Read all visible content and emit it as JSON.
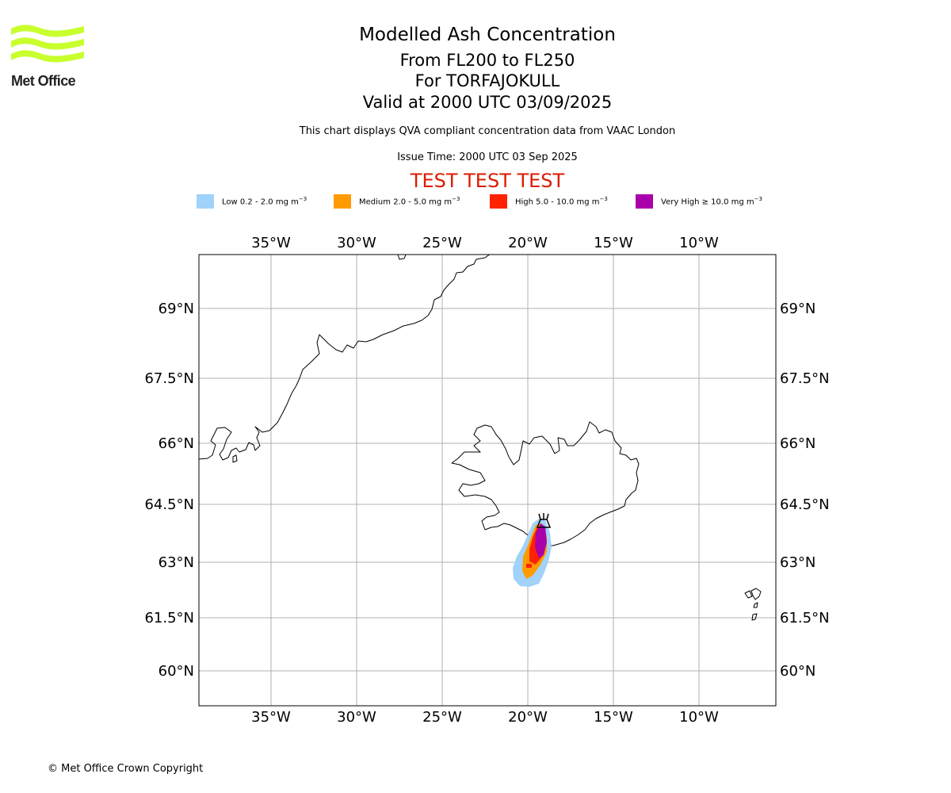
{
  "logo": {
    "text": "Met Office",
    "color": "#c8ff2d"
  },
  "header": {
    "title": "Modelled Ash Concentration",
    "levels": "From FL200 to FL250",
    "volcano": "For TORFAJOKULL",
    "valid": "Valid at 2000 UTC 03/09/2025",
    "subtitle": "This chart displays QVA compliant concentration data from VAAC London",
    "issue_time": "Issue Time: 2000 UTC 03 Sep 2025",
    "test_banner": "TEST TEST TEST"
  },
  "legend": [
    {
      "name": "Low",
      "range": "0.2 - 2.0 mg m",
      "sup": "−3",
      "color": "#a0d2fa"
    },
    {
      "name": "Medium",
      "range": "2.0 - 5.0 mg m",
      "sup": "−3",
      "color": "#ff9b00"
    },
    {
      "name": "High",
      "range": "5.0 - 10.0 mg m",
      "sup": "−3",
      "color": "#ff2200"
    },
    {
      "name": "Very High",
      "range": "≥  10.0 mg m",
      "sup": "−3",
      "color": "#aa00aa"
    }
  ],
  "map": {
    "lon_labels": [
      "35°W",
      "30°W",
      "25°W",
      "20°W",
      "15°W",
      "10°W"
    ],
    "lat_labels": [
      "69°N",
      "67.5°N",
      "66°N",
      "64.5°N",
      "63°N",
      "61.5°N",
      "60°N"
    ],
    "volcano_marker": "volcano-symbol"
  },
  "footer": {
    "copyright": "© Met Office Crown Copyright"
  }
}
